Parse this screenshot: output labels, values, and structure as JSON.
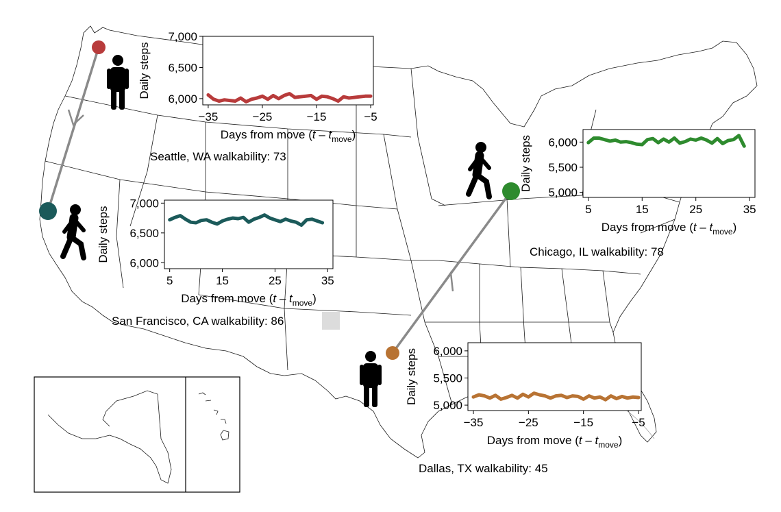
{
  "panels": [
    {
      "id": "seattle",
      "caption_prefix": "Seattle, WA walkability: ",
      "walkability": "73",
      "ylabel": "Daily steps",
      "xlabel_main": "Days from move (",
      "xlabel_t1": "t",
      "xlabel_dash": " – ",
      "xlabel_t2": "t",
      "xlabel_sub": "move",
      "xlabel_close": ")",
      "color": "#b83b3b"
    },
    {
      "id": "sanfrancisco",
      "caption_prefix": "San Francisco, CA walkability: ",
      "walkability": "86",
      "ylabel": "Daily steps",
      "xlabel_main": "Days from move (",
      "xlabel_t1": "t",
      "xlabel_dash": " – ",
      "xlabel_t2": "t",
      "xlabel_sub": "move",
      "xlabel_close": ")",
      "color": "#1b5a5a"
    },
    {
      "id": "chicago",
      "caption_prefix": "Chicago, IL walkability: ",
      "walkability": "78",
      "ylabel": "Daily steps",
      "xlabel_main": "Days from move (",
      "xlabel_t1": "t",
      "xlabel_dash": " – ",
      "xlabel_t2": "t",
      "xlabel_sub": "move",
      "xlabel_close": ")",
      "color": "#2e8b2e"
    },
    {
      "id": "dallas",
      "caption_prefix": "Dallas, TX walkability: ",
      "walkability": "45",
      "ylabel": "Daily steps",
      "xlabel_main": "Days from move (",
      "xlabel_t1": "t",
      "xlabel_dash": " – ",
      "xlabel_t2": "t",
      "xlabel_sub": "move",
      "xlabel_close": ")",
      "color": "#b87333"
    }
  ],
  "chart_data": [
    {
      "type": "line",
      "panel": "seattle",
      "x_ticks": [
        -35,
        -25,
        -15,
        -5
      ],
      "x_tick_labels": [
        "−35",
        "−25",
        "−15",
        "−5"
      ],
      "xlim": [
        -36,
        -4.5
      ],
      "y_ticks": [
        6000,
        6500,
        7000
      ],
      "y_tick_labels": [
        "6,000",
        "6,500",
        "7,000"
      ],
      "ylim": [
        5900,
        7000
      ],
      "series": [
        {
          "x": [
            -35,
            -34,
            -33,
            -32,
            -31,
            -30,
            -29,
            -28,
            -27,
            -26,
            -25,
            -24,
            -23,
            -22,
            -21,
            -20,
            -19,
            -18,
            -17,
            -16,
            -15,
            -14,
            -13,
            -12,
            -11,
            -10,
            -9,
            -8,
            -7,
            -6,
            -5
          ],
          "values": [
            6060,
            5990,
            5960,
            5980,
            5970,
            5960,
            6010,
            5950,
            5990,
            6010,
            6040,
            5990,
            6050,
            6000,
            6050,
            6080,
            6020,
            6030,
            6040,
            6050,
            5990,
            6040,
            6030,
            6000,
            5960,
            6030,
            6010,
            6020,
            6030,
            6040,
            6040
          ]
        }
      ]
    },
    {
      "type": "line",
      "panel": "sanfrancisco",
      "x_ticks": [
        5,
        15,
        25,
        35
      ],
      "x_tick_labels": [
        "5",
        "15",
        "25",
        "35"
      ],
      "xlim": [
        4,
        36
      ],
      "y_ticks": [
        6000,
        6500,
        7000
      ],
      "y_tick_labels": [
        "6,000",
        "6,500",
        "7,000"
      ],
      "ylim": [
        5900,
        7050
      ],
      "series": [
        {
          "x": [
            5,
            6,
            7,
            8,
            9,
            10,
            11,
            12,
            13,
            14,
            15,
            16,
            17,
            18,
            19,
            20,
            21,
            22,
            23,
            24,
            25,
            26,
            27,
            28,
            29,
            30,
            31,
            32,
            33,
            34
          ],
          "values": [
            6720,
            6760,
            6790,
            6730,
            6680,
            6670,
            6710,
            6720,
            6680,
            6650,
            6700,
            6730,
            6750,
            6740,
            6760,
            6680,
            6730,
            6760,
            6800,
            6750,
            6720,
            6690,
            6730,
            6700,
            6680,
            6630,
            6720,
            6730,
            6700,
            6670
          ]
        }
      ]
    },
    {
      "type": "line",
      "panel": "chicago",
      "x_ticks": [
        5,
        15,
        25,
        35
      ],
      "x_tick_labels": [
        "5",
        "15",
        "25",
        "35"
      ],
      "xlim": [
        4,
        36
      ],
      "y_ticks": [
        5000,
        5500,
        6000
      ],
      "y_tick_labels": [
        "5,000",
        "5,500",
        "6,000"
      ],
      "ylim": [
        4900,
        6250
      ],
      "series": [
        {
          "x": [
            5,
            6,
            7,
            8,
            9,
            10,
            11,
            12,
            13,
            14,
            15,
            16,
            17,
            18,
            19,
            20,
            21,
            22,
            23,
            24,
            25,
            26,
            27,
            28,
            29,
            30,
            31,
            32,
            33,
            34
          ],
          "values": [
            5990,
            6080,
            6080,
            6050,
            6020,
            6040,
            6000,
            6010,
            5990,
            5960,
            5950,
            6050,
            6070,
            5990,
            6060,
            6000,
            6080,
            5980,
            6010,
            6060,
            6040,
            6080,
            6040,
            5980,
            6070,
            5970,
            6030,
            6050,
            6130,
            5920
          ]
        }
      ]
    },
    {
      "type": "line",
      "panel": "dallas",
      "x_ticks": [
        -35,
        -25,
        -15,
        -5
      ],
      "x_tick_labels": [
        "−35",
        "−25",
        "−15",
        "−5"
      ],
      "xlim": [
        -36,
        -4.5
      ],
      "y_ticks": [
        5000,
        5500,
        6000
      ],
      "y_tick_labels": [
        "5,000",
        "5,500",
        "6,000"
      ],
      "ylim": [
        4900,
        6150
      ],
      "series": [
        {
          "x": [
            -35,
            -34,
            -33,
            -32,
            -31,
            -30,
            -29,
            -28,
            -27,
            -26,
            -25,
            -24,
            -23,
            -22,
            -21,
            -20,
            -19,
            -18,
            -17,
            -16,
            -15,
            -14,
            -13,
            -12,
            -11,
            -10,
            -9,
            -8,
            -7,
            -6,
            -5
          ],
          "values": [
            5150,
            5190,
            5170,
            5130,
            5180,
            5110,
            5140,
            5180,
            5130,
            5200,
            5150,
            5220,
            5190,
            5170,
            5130,
            5170,
            5180,
            5140,
            5170,
            5160,
            5110,
            5170,
            5130,
            5150,
            5100,
            5170,
            5120,
            5160,
            5130,
            5150,
            5140
          ]
        }
      ]
    }
  ]
}
